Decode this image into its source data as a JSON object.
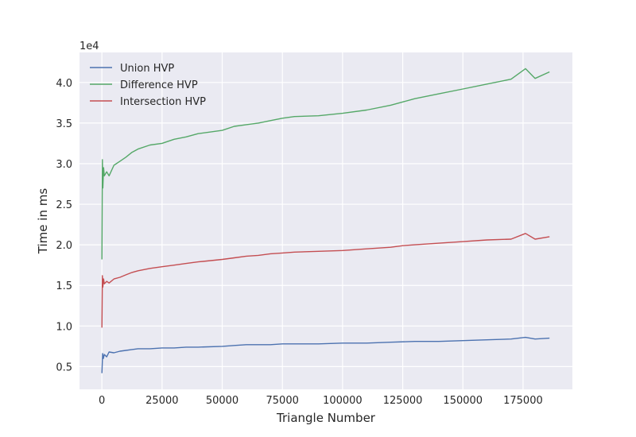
{
  "chart_data": {
    "type": "line",
    "xlabel": "Triangle Number",
    "ylabel": "Time in ms",
    "offset_text": "1e4",
    "xlim": [
      -9300,
      195500
    ],
    "ylim": [
      2200,
      43700
    ],
    "xticks": [
      0,
      25000,
      50000,
      75000,
      100000,
      125000,
      150000,
      175000
    ],
    "xtick_labels": [
      "0",
      "25000",
      "50000",
      "75000",
      "100000",
      "125000",
      "150000",
      "175000"
    ],
    "yticks": [
      5000,
      10000,
      15000,
      20000,
      25000,
      30000,
      35000,
      40000
    ],
    "ytick_labels": [
      "0.5",
      "1.0",
      "1.5",
      "2.0",
      "2.5",
      "3.0",
      "3.5",
      "4.0"
    ],
    "grid": true,
    "legend_position": "top-left",
    "background": "#eaeaf2",
    "series": [
      {
        "name": "Union HVP",
        "color": "#4c72b0",
        "x": [
          0,
          300,
          600,
          1000,
          2000,
          3000,
          5000,
          7500,
          10000,
          12500,
          15000,
          20000,
          25000,
          30000,
          35000,
          40000,
          50000,
          55000,
          60000,
          65000,
          70000,
          75000,
          80000,
          90000,
          100000,
          110000,
          120000,
          130000,
          140000,
          150000,
          160000,
          170000,
          176000,
          180000,
          186000
        ],
        "values": [
          4200,
          6600,
          6000,
          6500,
          6200,
          6800,
          6700,
          6900,
          7000,
          7100,
          7200,
          7200,
          7300,
          7300,
          7400,
          7400,
          7500,
          7600,
          7700,
          7700,
          7700,
          7800,
          7800,
          7800,
          7900,
          7900,
          8000,
          8100,
          8100,
          8200,
          8300,
          8400,
          8600,
          8400,
          8500
        ]
      },
      {
        "name": "Difference HVP",
        "color": "#55a868",
        "x": [
          0,
          200,
          400,
          700,
          1000,
          2000,
          3000,
          5000,
          7500,
          10000,
          12500,
          15000,
          20000,
          25000,
          30000,
          35000,
          40000,
          50000,
          55000,
          60000,
          65000,
          70000,
          75000,
          80000,
          90000,
          100000,
          110000,
          120000,
          125000,
          130000,
          140000,
          150000,
          160000,
          170000,
          176000,
          180000,
          186000
        ],
        "values": [
          18200,
          30500,
          27000,
          29500,
          28500,
          29000,
          28500,
          29800,
          30300,
          30800,
          31400,
          31800,
          32300,
          32500,
          33000,
          33300,
          33700,
          34100,
          34600,
          34800,
          35000,
          35300,
          35600,
          35800,
          35900,
          36200,
          36600,
          37200,
          37600,
          38000,
          38600,
          39200,
          39800,
          40400,
          41700,
          40500,
          41300
        ]
      },
      {
        "name": "Intersection HVP",
        "color": "#c44e52",
        "x": [
          0,
          200,
          400,
          700,
          1000,
          2000,
          3000,
          5000,
          7500,
          10000,
          12500,
          15000,
          20000,
          25000,
          30000,
          35000,
          40000,
          50000,
          55000,
          60000,
          65000,
          70000,
          75000,
          80000,
          90000,
          100000,
          110000,
          120000,
          125000,
          130000,
          140000,
          150000,
          160000,
          170000,
          176000,
          180000,
          186000
        ],
        "values": [
          9800,
          16200,
          14800,
          15800,
          15200,
          15500,
          15300,
          15800,
          16000,
          16300,
          16600,
          16800,
          17100,
          17300,
          17500,
          17700,
          17900,
          18200,
          18400,
          18600,
          18700,
          18900,
          19000,
          19100,
          19200,
          19300,
          19500,
          19700,
          19900,
          20000,
          20200,
          20400,
          20600,
          20700,
          21400,
          20700,
          21000
        ]
      }
    ]
  }
}
